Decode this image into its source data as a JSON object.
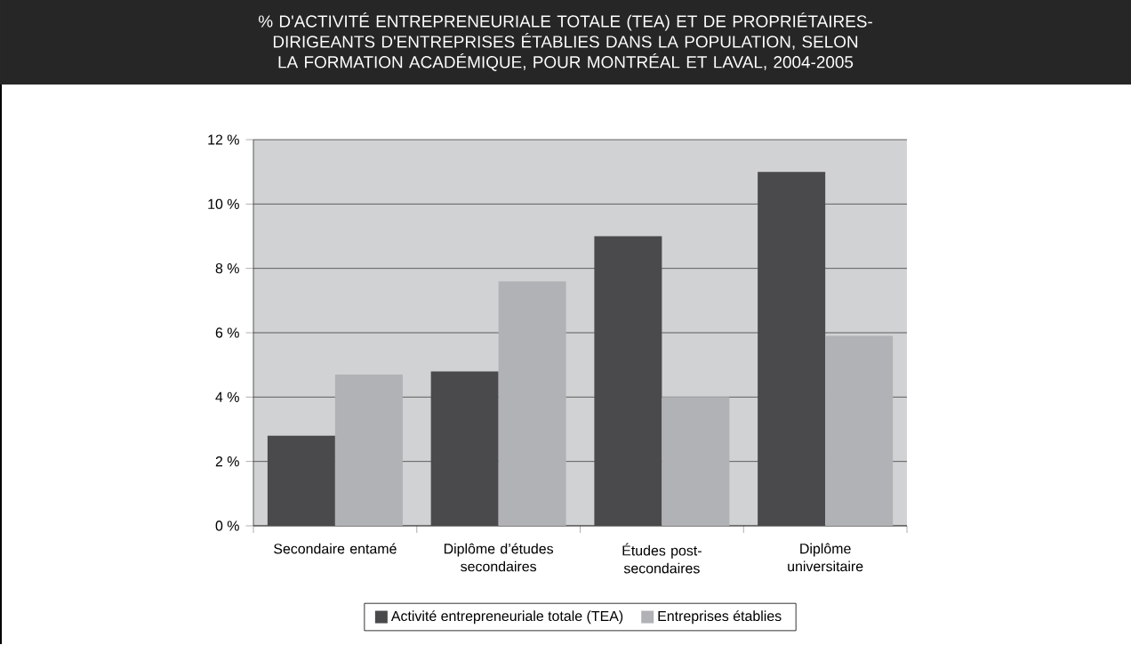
{
  "chart_data": {
    "type": "bar",
    "title": "% D'ACTIVITÉ ENTREPRENEURIALE TOTALE (TEA) ET DE PROPRIÉTAIRES-DIRIGEANTS D'ENTREPRISES ÉTABLIES DANS LA POPULATION, SELON LA FORMATION ACADÉMIQUE, POUR MONTRÉAL ET LAVAL, 2004-2005",
    "categories": [
      "Secondaire entamé",
      "Diplôme d’études secondaires",
      "Études post-secondaires",
      "Diplôme universitaire"
    ],
    "series": [
      {
        "name": "Activité entrepreneuriale totale (TEA)",
        "color": "#4a4a4c",
        "values": [
          2.8,
          4.8,
          9.0,
          11.0
        ]
      },
      {
        "name": "Entreprises établies",
        "color": "#b1b2b5",
        "values": [
          4.7,
          7.6,
          4.0,
          5.9
        ]
      }
    ],
    "ylim": [
      0,
      12
    ],
    "yticks": [
      {
        "value": 0,
        "label": "0 %"
      },
      {
        "value": 2,
        "label": "2 %"
      },
      {
        "value": 4,
        "label": "4 %"
      },
      {
        "value": 6,
        "label": "6 %"
      },
      {
        "value": 8,
        "label": "8 %"
      },
      {
        "value": 10,
        "label": "10 %"
      },
      {
        "value": 12,
        "label": "12 %"
      }
    ],
    "grid": "y",
    "legend": "bottom"
  }
}
